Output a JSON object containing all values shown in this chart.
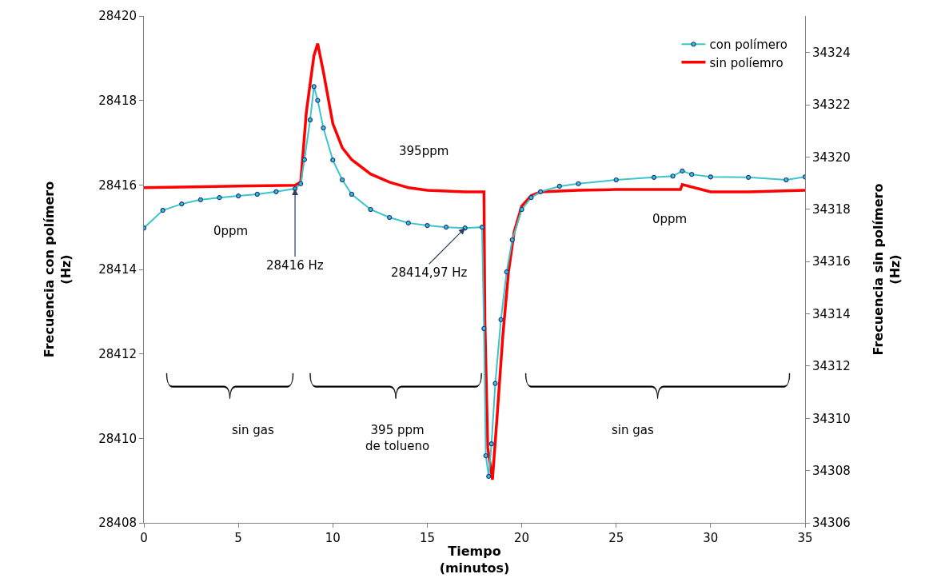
{
  "chart_data": {
    "type": "line",
    "xlabel": "Tiempo\n(minutos)",
    "ylabel": "Frecuencia con polímero\n(Hz)",
    "y2label": "Frecuencia sin polímero\n(Hz)",
    "xlim": [
      0,
      35
    ],
    "xticks": [
      0,
      5,
      10,
      15,
      20,
      25,
      30,
      35
    ],
    "ylim": [
      28408,
      28420
    ],
    "yticks": [
      28408,
      28410,
      28412,
      28414,
      28416,
      28418,
      28420
    ],
    "y2lim": [
      34306,
      34325.4
    ],
    "y2ticks": [
      34306,
      34308,
      34310,
      34312,
      34314,
      34316,
      34318,
      34320,
      34322,
      34324
    ],
    "legend": "top right",
    "series": [
      {
        "name": "con polímero",
        "color": "#3cc4cc",
        "marker": "circle",
        "axis": "y",
        "x": [
          0,
          1,
          2,
          3,
          4,
          5,
          6,
          7,
          8,
          8.3,
          8.5,
          8.8,
          9.0,
          9.2,
          9.5,
          10,
          10.5,
          11,
          12,
          13,
          14,
          15,
          16,
          17,
          17.9,
          18.0,
          18.1,
          18.25,
          18.4,
          18.6,
          18.9,
          19.2,
          19.5,
          20,
          20.5,
          21,
          22,
          23,
          25,
          27,
          28,
          28.5,
          29,
          30,
          32,
          34,
          35
        ],
        "values": [
          28414.98,
          28415.4,
          28415.55,
          28415.65,
          28415.7,
          28415.74,
          28415.78,
          28415.84,
          28415.91,
          28416.03,
          28416.6,
          28417.54,
          28418.33,
          28418.0,
          28417.35,
          28416.59,
          28416.12,
          28415.78,
          28415.42,
          28415.23,
          28415.1,
          28415.04,
          28415.0,
          28414.98,
          28415.0,
          28412.6,
          28409.59,
          28409.1,
          28409.87,
          28411.3,
          28412.81,
          28413.94,
          28414.7,
          28415.42,
          28415.7,
          28415.84,
          28415.97,
          28416.03,
          28416.12,
          28416.18,
          28416.21,
          28416.33,
          28416.25,
          28416.19,
          28416.18,
          28416.12,
          28416.19
        ]
      },
      {
        "name": "sin políemro",
        "color": "#ff0000",
        "marker": "none",
        "axis": "y2",
        "x": [
          0,
          5,
          8,
          8.3,
          8.6,
          9.0,
          9.2,
          9.5,
          10,
          10.5,
          11,
          12,
          13,
          14,
          15,
          17,
          18.0,
          18.05,
          18.2,
          18.45,
          18.7,
          19,
          19.3,
          19.6,
          20,
          20.5,
          21,
          23,
          25,
          28.4,
          28.5,
          30,
          32,
          35
        ],
        "values": [
          34318.83,
          34318.89,
          34318.92,
          34319.04,
          34321.73,
          34323.88,
          34324.34,
          34323.27,
          34321.28,
          34320.36,
          34319.9,
          34319.35,
          34319.04,
          34318.83,
          34318.73,
          34318.67,
          34318.67,
          34313.8,
          34308.88,
          34307.65,
          34310.1,
          34313.16,
          34315.6,
          34317.14,
          34318.12,
          34318.52,
          34318.67,
          34318.73,
          34318.76,
          34318.76,
          34318.95,
          34318.67,
          34318.67,
          34318.73
        ]
      }
    ],
    "annotations": [
      "0ppm",
      "395ppm",
      "0ppm",
      {
        "text": "28416 Hz",
        "x": 8,
        "y": 28415.91
      },
      {
        "text": "28414,97 Hz",
        "x": 17,
        "y": 28414.98
      },
      "sin gas",
      "395 ppm\nde tolueno",
      "sin gas"
    ]
  }
}
